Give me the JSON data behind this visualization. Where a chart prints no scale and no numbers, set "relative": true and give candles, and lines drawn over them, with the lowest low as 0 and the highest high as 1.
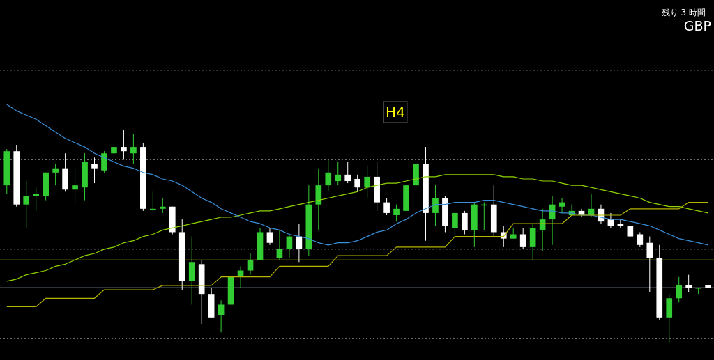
{
  "chart_data": {
    "type": "candlestick",
    "relative": true,
    "categories": [
      null,
      null,
      null,
      null,
      null,
      null,
      null,
      null,
      null,
      null,
      null,
      null,
      null,
      null,
      null,
      null,
      null,
      null,
      null,
      null,
      null,
      null,
      null,
      null,
      null,
      null,
      null,
      null,
      null,
      null,
      null,
      null,
      null,
      null,
      null,
      null,
      null,
      null,
      null,
      null,
      null,
      null,
      null,
      null,
      null,
      null,
      null,
      null,
      null,
      null,
      null,
      null,
      null,
      null,
      null,
      null,
      null,
      null,
      null,
      null,
      null,
      null,
      null,
      null,
      null,
      null,
      null,
      null,
      null,
      null,
      null,
      null,
      null
    ],
    "ohlc": [
      [
        0.74,
        0.91,
        0.7,
        0.9
      ],
      [
        0.9,
        0.93,
        0.64,
        0.65
      ],
      [
        0.65,
        0.76,
        0.54,
        0.69
      ],
      [
        0.69,
        0.73,
        0.62,
        0.7
      ],
      [
        0.69,
        0.8,
        0.67,
        0.8
      ],
      [
        0.8,
        0.84,
        0.74,
        0.82
      ],
      [
        0.82,
        0.89,
        0.71,
        0.72
      ],
      [
        0.72,
        0.82,
        0.65,
        0.74
      ],
      [
        0.73,
        0.89,
        0.67,
        0.85
      ],
      [
        0.84,
        0.87,
        0.75,
        0.82
      ],
      [
        0.81,
        0.9,
        0.8,
        0.89
      ],
      [
        0.89,
        0.94,
        0.85,
        0.92
      ],
      [
        0.92,
        1,
        0.86,
        0.9
      ],
      [
        0.89,
        0.98,
        0.84,
        0.92
      ],
      [
        0.92,
        0.94,
        0.62,
        0.63
      ],
      [
        0.63,
        0.71,
        0.62,
        0.63
      ],
      [
        0.63,
        0.68,
        0.61,
        0.64
      ],
      [
        0.64,
        0.64,
        0.51,
        0.52
      ],
      [
        0.52,
        0.58,
        0.25,
        0.29
      ],
      [
        0.29,
        0.5,
        0.18,
        0.38
      ],
      [
        0.37,
        0.39,
        0.09,
        0.23
      ],
      [
        0.23,
        0.26,
        0.12,
        0.12
      ],
      [
        0.13,
        0.2,
        0.05,
        0.18
      ],
      [
        0.18,
        0.31,
        0.18,
        0.31
      ],
      [
        0.31,
        0.36,
        0.26,
        0.34
      ],
      [
        0.34,
        0.42,
        0.32,
        0.39
      ],
      [
        0.39,
        0.54,
        0.39,
        0.52
      ],
      [
        0.52,
        0.54,
        0.46,
        0.47
      ],
      [
        0.4,
        0.53,
        0.39,
        0.44
      ],
      [
        0.44,
        0.51,
        0.4,
        0.5
      ],
      [
        0.5,
        0.56,
        0.38,
        0.44
      ],
      [
        0.44,
        0.74,
        0.41,
        0.65
      ],
      [
        0.65,
        0.82,
        0.53,
        0.74
      ],
      [
        0.74,
        0.86,
        0.71,
        0.8
      ],
      [
        0.76,
        0.85,
        0.74,
        0.79
      ],
      [
        0.79,
        0.85,
        0.75,
        0.76
      ],
      [
        0.77,
        0.79,
        0.71,
        0.73
      ],
      [
        0.73,
        0.83,
        0.68,
        0.78
      ],
      [
        0.78,
        0.85,
        0.62,
        0.66
      ],
      [
        0.66,
        0.68,
        0.6,
        0.61
      ],
      [
        0.6,
        0.65,
        0.57,
        0.63
      ],
      [
        0.62,
        0.74,
        0.62,
        0.74
      ],
      [
        0.74,
        0.85,
        0.71,
        0.84
      ],
      [
        0.84,
        0.92,
        0.48,
        0.61
      ],
      [
        0.61,
        0.74,
        0.55,
        0.68
      ],
      [
        0.68,
        0.69,
        0.52,
        0.55
      ],
      [
        0.54,
        0.61,
        0.5,
        0.61
      ],
      [
        0.61,
        0.62,
        0.51,
        0.53
      ],
      [
        0.53,
        0.66,
        0.45,
        0.65
      ],
      [
        0.65,
        0.66,
        0.53,
        0.65
      ],
      [
        0.65,
        0.74,
        0.5,
        0.52
      ],
      [
        0.52,
        0.55,
        0.45,
        0.49
      ],
      [
        0.49,
        0.54,
        0.49,
        0.51
      ],
      [
        0.51,
        0.54,
        0.44,
        0.45
      ],
      [
        0.45,
        0.56,
        0.39,
        0.54
      ],
      [
        0.53,
        0.63,
        0.43,
        0.58
      ],
      [
        0.58,
        0.69,
        0.46,
        0.65
      ],
      [
        0.64,
        0.68,
        0.61,
        0.66
      ],
      [
        0.6,
        0.65,
        0.6,
        0.62
      ],
      [
        0.62,
        0.63,
        0.59,
        0.6
      ],
      [
        0.6,
        0.7,
        0.59,
        0.63
      ],
      [
        0.63,
        0.65,
        0.56,
        0.57
      ],
      [
        0.58,
        0.61,
        0.54,
        0.55
      ],
      [
        0.56,
        0.58,
        0.54,
        0.55
      ],
      [
        0.55,
        0.55,
        0.5,
        0.5
      ],
      [
        0.51,
        0.52,
        0.45,
        0.46
      ],
      [
        0.47,
        0.5,
        0.24,
        0.4
      ],
      [
        0.4,
        0.46,
        0.11,
        0.12
      ],
      [
        0.12,
        0.23,
        0,
        0.21
      ],
      [
        0.21,
        0.31,
        0.19,
        0.27
      ],
      [
        0.27,
        0.32,
        0.24,
        0.26
      ],
      [
        0.26,
        0.26,
        0.23,
        0.26
      ],
      [
        0.27,
        0.27,
        0.26,
        0.26
      ]
    ],
    "colors": [
      "#32cd32",
      "#ffffff",
      "#32cd32",
      "#32cd32",
      "#32cd32",
      "#32cd32",
      "#ffffff",
      "#32cd32",
      "#32cd32",
      "#ffffff",
      "#32cd32",
      "#32cd32",
      "#ffffff",
      "#32cd32",
      "#ffffff",
      "#32cd32",
      "#32cd32",
      "#ffffff",
      "#ffffff",
      "#32cd32",
      "#ffffff",
      "#ffffff",
      "#32cd32",
      "#32cd32",
      "#32cd32",
      "#32cd32",
      "#32cd32",
      "#ffffff",
      "#32cd32",
      "#32cd32",
      "#ffffff",
      "#32cd32",
      "#32cd32",
      "#32cd32",
      "#32cd32",
      "#ffffff",
      "#ffffff",
      "#32cd32",
      "#ffffff",
      "#ffffff",
      "#32cd32",
      "#32cd32",
      "#32cd32",
      "#ffffff",
      "#32cd32",
      "#ffffff",
      "#32cd32",
      "#ffffff",
      "#32cd32",
      "#32cd32",
      "#ffffff",
      "#ffffff",
      "#32cd32",
      "#ffffff",
      "#32cd32",
      "#32cd32",
      "#32cd32",
      "#32cd32",
      "#32cd32",
      "#ffffff",
      "#32cd32",
      "#ffffff",
      "#ffffff",
      "#ffffff",
      "#ffffff",
      "#ffffff",
      "#ffffff",
      "#ffffff",
      "#32cd32",
      "#32cd32",
      "#ffffff",
      "#32cd32",
      "#ffffff"
    ],
    "series": [
      {
        "type": "line",
        "color": "#8fd400",
        "values": [
          0.29,
          0.3,
          0.32,
          0.33,
          0.34,
          0.36,
          0.37,
          0.39,
          0.41,
          0.42,
          0.44,
          0.45,
          0.47,
          0.48,
          0.5,
          0.51,
          0.53,
          0.54,
          0.55,
          0.56,
          0.57,
          0.58,
          0.59,
          0.59,
          0.6,
          0.61,
          0.62,
          0.62,
          0.63,
          0.64,
          0.65,
          0.66,
          0.67,
          0.68,
          0.69,
          0.7,
          0.71,
          0.73,
          0.74,
          0.75,
          0.75,
          0.76,
          0.77,
          0.78,
          0.78,
          0.79,
          0.79,
          0.79,
          0.79,
          0.79,
          0.79,
          0.78,
          0.78,
          0.77,
          0.77,
          0.76,
          0.76,
          0.75,
          0.74,
          0.74,
          0.73,
          0.72,
          0.71,
          0.7,
          0.69,
          0.68,
          0.66,
          0.65,
          0.64,
          0.64,
          0.63,
          0.62,
          0.61
        ]
      },
      {
        "type": "line",
        "color": "#3a8fd8",
        "values": [
          1.12,
          1.09,
          1.07,
          1.05,
          1.02,
          0.99,
          0.96,
          0.94,
          0.92,
          0.89,
          0.87,
          0.85,
          0.83,
          0.82,
          0.8,
          0.79,
          0.77,
          0.76,
          0.74,
          0.71,
          0.68,
          0.66,
          0.63,
          0.61,
          0.59,
          0.57,
          0.56,
          0.54,
          0.53,
          0.51,
          0.5,
          0.49,
          0.47,
          0.46,
          0.47,
          0.47,
          0.48,
          0.5,
          0.52,
          0.53,
          0.56,
          0.58,
          0.61,
          0.63,
          0.65,
          0.65,
          0.66,
          0.66,
          0.66,
          0.67,
          0.67,
          0.66,
          0.65,
          0.64,
          0.63,
          0.62,
          0.62,
          0.61,
          0.61,
          0.6,
          0.6,
          0.59,
          0.58,
          0.58,
          0.57,
          0.56,
          0.55,
          0.53,
          0.51,
          0.49,
          0.48,
          0.47,
          0.46
        ]
      },
      {
        "type": "line",
        "color": "#b5b500",
        "values": [
          0.17,
          0.17,
          0.17,
          0.17,
          0.21,
          0.21,
          0.21,
          0.21,
          0.21,
          0.21,
          0.25,
          0.25,
          0.25,
          0.25,
          0.25,
          0.25,
          0.27,
          0.27,
          0.27,
          0.27,
          0.27,
          0.27,
          0.31,
          0.31,
          0.31,
          0.31,
          0.31,
          0.31,
          0.36,
          0.36,
          0.36,
          0.36,
          0.36,
          0.36,
          0.41,
          0.41,
          0.41,
          0.41,
          0.41,
          0.41,
          0.45,
          0.45,
          0.45,
          0.45,
          0.45,
          0.45,
          0.5,
          0.5,
          0.5,
          0.5,
          0.5,
          0.5,
          0.56,
          0.56,
          0.56,
          0.56,
          0.56,
          0.56,
          0.6,
          0.6,
          0.6,
          0.6,
          0.6,
          0.6,
          0.63,
          0.63,
          0.63,
          0.63,
          0.63,
          0.63,
          0.66,
          0.66,
          0.66
        ]
      }
    ],
    "ref_lines": [
      {
        "axis": "y",
        "value": 0.39,
        "color": "#9a9a00",
        "line_style": "solid"
      },
      {
        "axis": "y",
        "value": 0.26,
        "color": "#5a6470",
        "line_style": "solid"
      },
      {
        "axis": "y",
        "value": 1.28,
        "color": "#777777",
        "line_style": "dotted"
      },
      {
        "axis": "y",
        "value": 0.86,
        "color": "#777777",
        "line_style": "dotted"
      },
      {
        "axis": "y",
        "value": 0.44,
        "color": "#777777",
        "line_style": "dotted"
      },
      {
        "axis": "y",
        "value": 0.02,
        "color": "#777777",
        "line_style": "dotted"
      }
    ],
    "annotations": [
      "H4",
      "残り 3 時間",
      "GBP"
    ]
  }
}
